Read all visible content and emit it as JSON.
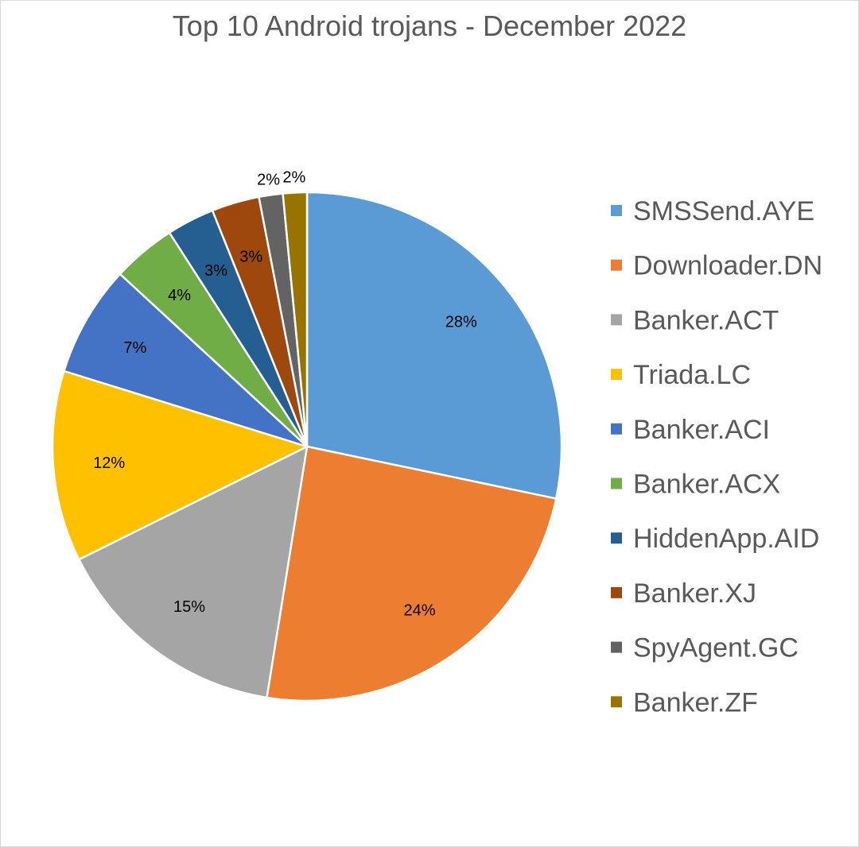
{
  "chart_data": {
    "type": "pie",
    "title": "Top 10 Android trojans - December 2022",
    "legend_position": "right",
    "slices": [
      {
        "name": "SMSSend.AYE",
        "value": 28,
        "label": "28%",
        "color": "#5b9bd5"
      },
      {
        "name": "Downloader.DN",
        "value": 24,
        "label": "24%",
        "color": "#ed7d31"
      },
      {
        "name": "Banker.ACT",
        "value": 15,
        "label": "15%",
        "color": "#a5a5a5"
      },
      {
        "name": "Triada.LC",
        "value": 12,
        "label": "12%",
        "color": "#ffc000"
      },
      {
        "name": "Banker.ACI",
        "value": 7,
        "label": "7%",
        "color": "#4472c4"
      },
      {
        "name": "Banker.ACX",
        "value": 4,
        "label": "4%",
        "color": "#70ad47"
      },
      {
        "name": "HiddenApp.AID",
        "value": 3,
        "label": "3%",
        "color": "#255e91"
      },
      {
        "name": "Banker.XJ",
        "value": 3,
        "label": "3%",
        "color": "#9e480e"
      },
      {
        "name": "SpyAgent.GC",
        "value": 1.5,
        "label": "2%",
        "color": "#636363"
      },
      {
        "name": "Banker.ZF",
        "value": 1.5,
        "label": "2%",
        "color": "#997300"
      }
    ]
  }
}
